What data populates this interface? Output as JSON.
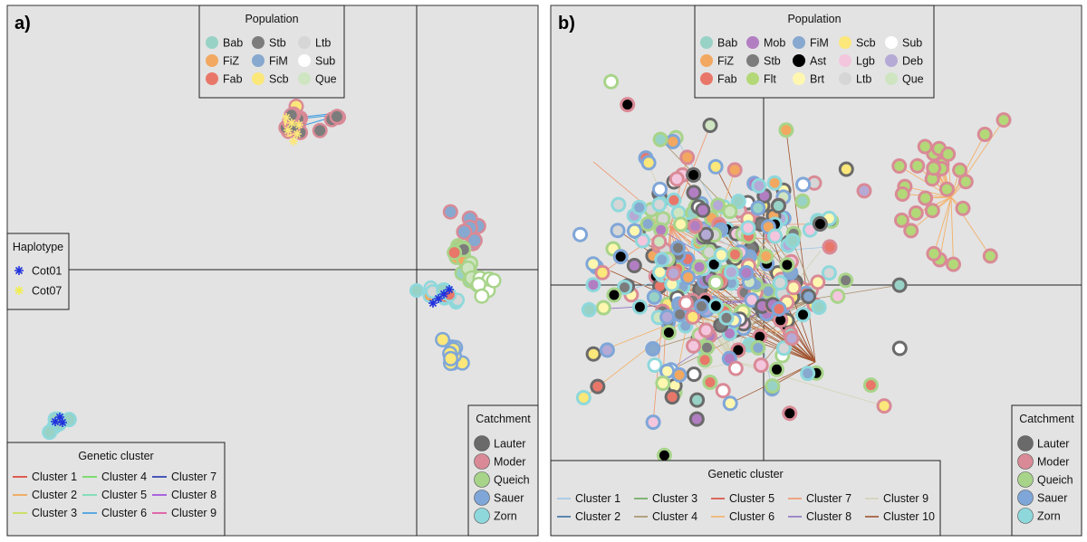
{
  "chart_data": [
    {
      "panel_label": "a)",
      "type": "scatter",
      "title": "",
      "xlabel": "",
      "ylabel": "",
      "axes_lines": "cross",
      "legends": {
        "population": {
          "title": "Population",
          "entries": [
            {
              "label": "Bab",
              "color": "#98d2c6"
            },
            {
              "label": "Stb",
              "color": "#7c7c7c"
            },
            {
              "label": "Ltb",
              "color": "#d6d6d6"
            },
            {
              "label": "FiZ",
              "color": "#f2a860"
            },
            {
              "label": "FiM",
              "color": "#87a8cf"
            },
            {
              "label": "Sub",
              "color": "#ffffff"
            },
            {
              "label": "Fab",
              "color": "#e8776a"
            },
            {
              "label": "Scb",
              "color": "#fbe77a"
            },
            {
              "label": "Que",
              "color": "#cfe5c2"
            }
          ]
        },
        "haplotype": {
          "title": "Haplotype",
          "entries": [
            {
              "label": "Cot01",
              "color": "#2233dd"
            },
            {
              "label": "Cot07",
              "color": "#f0ee55"
            }
          ]
        },
        "genetic_cluster": {
          "title": "Genetic cluster",
          "entries": [
            {
              "label": "Cluster 1",
              "color": "#dd3a2a"
            },
            {
              "label": "Cluster 4",
              "color": "#66d955"
            },
            {
              "label": "Cluster 7",
              "color": "#2233aa"
            },
            {
              "label": "Cluster 2",
              "color": "#f2a04a"
            },
            {
              "label": "Cluster 5",
              "color": "#6ddcb0"
            },
            {
              "label": "Cluster 8",
              "color": "#9a44dd"
            },
            {
              "label": "Cluster 3",
              "color": "#c6e048"
            },
            {
              "label": "Cluster 6",
              "color": "#3a9ae0"
            },
            {
              "label": "Cluster 9",
              "color": "#e04a9a"
            }
          ]
        },
        "catchment": {
          "title": "Catchment",
          "entries": [
            {
              "label": "Lauter",
              "color": "#6a6a6a"
            },
            {
              "label": "Moder",
              "color": "#d98a96"
            },
            {
              "label": "Queich",
              "color": "#a8d48a"
            },
            {
              "label": "Sauer",
              "color": "#7fa6d8"
            },
            {
              "label": "Zorn",
              "color": "#8ed8dc"
            }
          ]
        }
      }
    },
    {
      "panel_label": "b)",
      "type": "scatter",
      "title": "",
      "xlabel": "",
      "ylabel": "",
      "axes_lines": "cross",
      "legends": {
        "population": {
          "title": "Population",
          "entries": [
            {
              "label": "Bab",
              "color": "#98d2c6"
            },
            {
              "label": "Mob",
              "color": "#b27ec2"
            },
            {
              "label": "FiM",
              "color": "#87a8cf"
            },
            {
              "label": "Scb",
              "color": "#fbe77a"
            },
            {
              "label": "Sub",
              "color": "#ffffff"
            },
            {
              "label": "FiZ",
              "color": "#f2a860"
            },
            {
              "label": "Stb",
              "color": "#7c7c7c"
            },
            {
              "label": "Ast",
              "color": "#000000"
            },
            {
              "label": "Lgb",
              "color": "#f3c6de"
            },
            {
              "label": "Deb",
              "color": "#b5aad6"
            },
            {
              "label": "Fab",
              "color": "#e8776a"
            },
            {
              "label": "Flt",
              "color": "#b3d878"
            },
            {
              "label": "Brt",
              "color": "#fff7b0"
            },
            {
              "label": "Ltb",
              "color": "#d6d6d6"
            },
            {
              "label": "Que",
              "color": "#cfe5c2"
            }
          ]
        },
        "genetic_cluster": {
          "title": "Genetic cluster",
          "entries": [
            {
              "label": "Cluster 1",
              "color": "#9ec6e6"
            },
            {
              "label": "Cluster 3",
              "color": "#6aa85a"
            },
            {
              "label": "Cluster 5",
              "color": "#d84a3a"
            },
            {
              "label": "Cluster 7",
              "color": "#f0956a"
            },
            {
              "label": "Cluster 9",
              "color": "#d2d2b4"
            },
            {
              "label": "Cluster 2",
              "color": "#3a6fa0"
            },
            {
              "label": "Cluster 4",
              "color": "#a8906a"
            },
            {
              "label": "Cluster 6",
              "color": "#f3b068"
            },
            {
              "label": "Cluster 8",
              "color": "#8e72c2"
            },
            {
              "label": "Cluster 10",
              "color": "#a0522d"
            }
          ]
        },
        "catchment": {
          "title": "Catchment",
          "entries": [
            {
              "label": "Lauter",
              "color": "#6a6a6a"
            },
            {
              "label": "Moder",
              "color": "#d98a96"
            },
            {
              "label": "Queich",
              "color": "#a8d48a"
            },
            {
              "label": "Sauer",
              "color": "#7fa6d8"
            },
            {
              "label": "Zorn",
              "color": "#8ed8dc"
            }
          ]
        }
      }
    }
  ]
}
